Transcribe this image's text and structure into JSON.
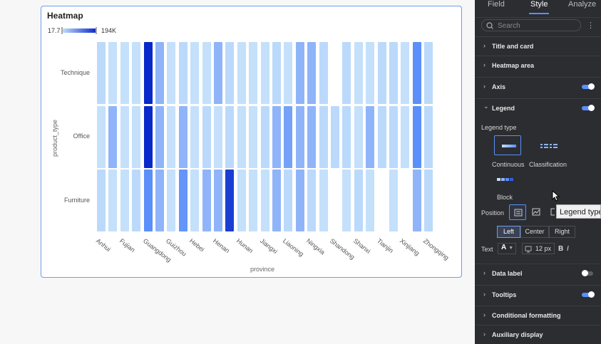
{
  "card": {
    "title": "Heatmap"
  },
  "legend": {
    "min": "17.7",
    "max": "194K"
  },
  "colors": {
    "low": "#c4e0fb",
    "high": "#0a29c9",
    "accent": "#5b8ff9",
    "panel_bg": "#2b2d31"
  },
  "chart_data": {
    "type": "heatmap",
    "title": "Heatmap",
    "xlabel": "province",
    "ylabel": "product_type",
    "x_tick_labels": [
      "Anhui",
      "Fujian",
      "Guangdong",
      "Guizhou",
      "Hebei",
      "Henan",
      "Hunan",
      "Jiangxi",
      "Liaoning",
      "Ningxia",
      "Shandong",
      "Shanxi",
      "Tianjin",
      "Xinjiang",
      "Zhongqing"
    ],
    "columns": 29,
    "y_categories": [
      "Technique",
      "Office",
      "Furniture"
    ],
    "color_range": [
      17.7,
      194000
    ],
    "values": [
      [
        0.2,
        0.15,
        0.15,
        0.15,
        1.0,
        0.45,
        0.15,
        0.2,
        0.15,
        0.15,
        0.45,
        0.2,
        0.15,
        0.15,
        0.15,
        0.2,
        0.15,
        0.45,
        0.45,
        0.2,
        null,
        0.2,
        0.15,
        0.15,
        0.2,
        0.2,
        0.15,
        0.75,
        0.2
      ],
      [
        0.15,
        0.45,
        0.15,
        0.15,
        1.0,
        0.45,
        0.15,
        0.45,
        0.15,
        0.2,
        0.15,
        0.2,
        0.15,
        0.15,
        0.2,
        0.45,
        0.6,
        0.45,
        0.45,
        0.2,
        0.2,
        0.2,
        0.15,
        0.45,
        0.2,
        0.2,
        0.15,
        0.75,
        0.2
      ],
      [
        0.2,
        0.15,
        0.15,
        0.2,
        0.75,
        0.45,
        0.15,
        0.7,
        0.15,
        0.45,
        0.45,
        0.95,
        0.15,
        0.15,
        0.15,
        0.45,
        0.2,
        0.45,
        0.2,
        0.15,
        null,
        0.15,
        0.2,
        0.15,
        null,
        0.15,
        null,
        0.45,
        0.2
      ]
    ]
  },
  "panel": {
    "tabs": [
      "Field",
      "Style",
      "Analyze"
    ],
    "search_placeholder": "Search",
    "kebab": "⋮",
    "sections": {
      "title_card": "Title and card",
      "heatmap_area": "Heatmap area",
      "axis": "Axis",
      "legend": "Legend",
      "data_label": "Data label",
      "tooltips": "Tooltips",
      "conditional": "Conditional formatting",
      "auxiliary": "Auxiliary display"
    },
    "legend_type_label": "Legend type",
    "legend_types": [
      "Continuous",
      "Classification",
      "Block"
    ],
    "position_label": "Position",
    "align": [
      "Left",
      "Center",
      "Right"
    ],
    "text_label": "Text",
    "text_color": "A",
    "font_size": "12 px",
    "bold": "B",
    "italic": "I",
    "chev_right": "›",
    "chev_down": "⌄",
    "tooltip_text": "Legend type"
  }
}
